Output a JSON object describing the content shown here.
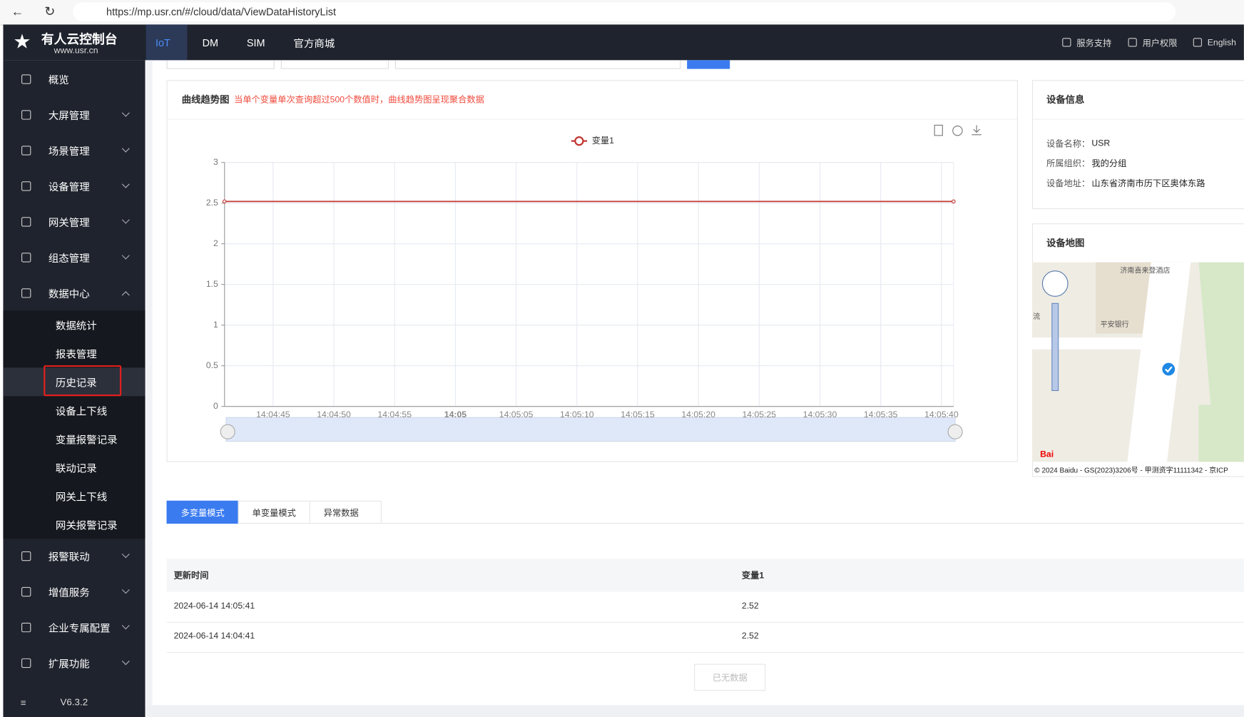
{
  "browser": {
    "url": "https://mp.usr.cn/#/cloud/data/ViewDataHistoryList"
  },
  "brand": {
    "name": "有人云控制台",
    "site": "www.usr.cn"
  },
  "top_nav": [
    "IoT",
    "DM",
    "SIM",
    "官方商城"
  ],
  "top_right": [
    "服务支持",
    "用户权限",
    "English"
  ],
  "sidebar": {
    "menu": [
      "概览",
      "大屏管理",
      "场景管理",
      "设备管理",
      "网关管理",
      "组态管理",
      "数据中心"
    ],
    "submenu": [
      "数据统计",
      "报表管理",
      "历史记录",
      "设备上下线",
      "变量报警记录",
      "联动记录",
      "网关上下线",
      "网关报警记录"
    ],
    "menu_lower": [
      "报警联动",
      "增值服务",
      "企业专属配置",
      "扩展功能"
    ],
    "version": "V6.3.2"
  },
  "trend_panel": {
    "title": "曲线趋势图",
    "note": "当单个变量单次查询超过500个数值时，曲线趋势图呈现聚合数据"
  },
  "chart_data": {
    "type": "line",
    "x": [
      "14:04:41",
      "14:05:41"
    ],
    "xlim": [
      "14:04:41",
      "14:05:41"
    ],
    "xticks": [
      "14:04:45",
      "14:04:50",
      "14:04:55",
      "14:05",
      "14:05:05",
      "14:05:10",
      "14:05:15",
      "14:05:20",
      "14:05:25",
      "14:05:30",
      "14:05:35",
      "14:05:40"
    ],
    "series": [
      {
        "name": "变量1",
        "color": "#c23531",
        "values": [
          2.52,
          2.52
        ]
      }
    ],
    "ylim": [
      0,
      3
    ],
    "yticks": [
      0,
      0.5,
      1,
      1.5,
      2,
      2.5,
      3
    ],
    "grid": true
  },
  "device_info": {
    "title": "设备信息",
    "fields": [
      [
        "设备名称：",
        "USR"
      ],
      [
        "所属组织：",
        "我的分组"
      ],
      [
        "设备地址：",
        "山东省济南市历下区奥体东路"
      ]
    ]
  },
  "device_map": {
    "title": "设备地图",
    "places": [
      "济南喜来登酒店",
      "平安银行",
      "流"
    ],
    "copyright": "© 2024 Baidu - GS(2023)3206号 - 甲测资字11111342 - 京ICP"
  },
  "tabs": [
    "多变量模式",
    "单变量模式",
    "异常数据"
  ],
  "table": {
    "headers": [
      "更新时间",
      "变量1"
    ],
    "rows": [
      [
        "2024-06-14 14:05:41",
        "2.52"
      ],
      [
        "2024-06-14 14:04:41",
        "2.52"
      ]
    ]
  },
  "no_more": "已无数据"
}
